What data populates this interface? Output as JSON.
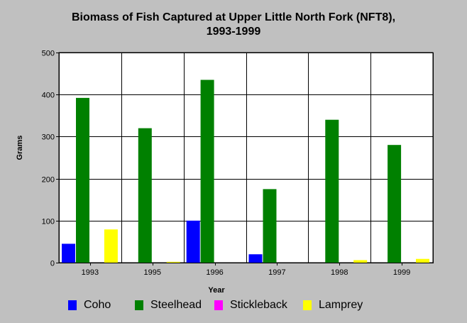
{
  "chart_data": {
    "type": "bar",
    "title_line1": "Biomass of Fish Captured at Upper Little North Fork (NFT8),",
    "title_line2": "1993-1999",
    "xlabel": "Year",
    "ylabel": "Grams",
    "categories": [
      "1993",
      "1995",
      "1996",
      "1997",
      "1998",
      "1999"
    ],
    "ylim": [
      0,
      500
    ],
    "yticks": [
      "0",
      "100",
      "200",
      "300",
      "400",
      "500"
    ],
    "grid": true,
    "legend_position": "bottom",
    "series": [
      {
        "name": "Coho",
        "color": "#0000ff",
        "values": [
          45,
          0,
          100,
          20,
          0,
          0
        ]
      },
      {
        "name": "Steelhead",
        "color": "#008000",
        "values": [
          392,
          320,
          435,
          175,
          340,
          280
        ]
      },
      {
        "name": "Stickleback",
        "color": "#ff00ff",
        "values": [
          0,
          0,
          0,
          0,
          0,
          0
        ]
      },
      {
        "name": "Lamprey",
        "color": "#ffff00",
        "values": [
          79,
          2,
          0,
          0,
          6,
          9
        ]
      }
    ]
  }
}
